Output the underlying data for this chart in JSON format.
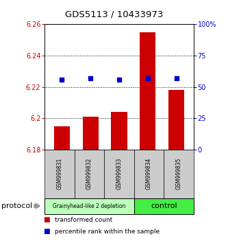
{
  "title": "GDS5113 / 10433973",
  "samples": [
    "GSM999831",
    "GSM999832",
    "GSM999833",
    "GSM999834",
    "GSM999835"
  ],
  "bar_values": [
    6.195,
    6.201,
    6.204,
    6.255,
    6.218
  ],
  "bar_baseline": 6.18,
  "percentile_values": [
    56,
    57,
    56,
    57,
    57
  ],
  "ylim_left": [
    6.18,
    6.26
  ],
  "yticks_left": [
    6.18,
    6.2,
    6.22,
    6.24,
    6.26
  ],
  "ytick_labels_left": [
    "6.18",
    "6.2",
    "6.22",
    "6.24",
    "6.26"
  ],
  "yticks_right": [
    0,
    25,
    50,
    75,
    100
  ],
  "bar_color": "#cc0000",
  "percentile_color": "#0000cc",
  "groups": [
    {
      "label": "Grainyhead-like 2 depletion",
      "indices": [
        0,
        1,
        2
      ],
      "color": "#bbffbb"
    },
    {
      "label": "control",
      "indices": [
        3,
        4
      ],
      "color": "#44ee44"
    }
  ],
  "protocol_label": "protocol",
  "legend_bar_label": "transformed count",
  "legend_pct_label": "percentile rank within the sample",
  "tick_color_left": "#cc0000",
  "tick_color_right": "#0000cc",
  "sample_box_color": "#cccccc"
}
